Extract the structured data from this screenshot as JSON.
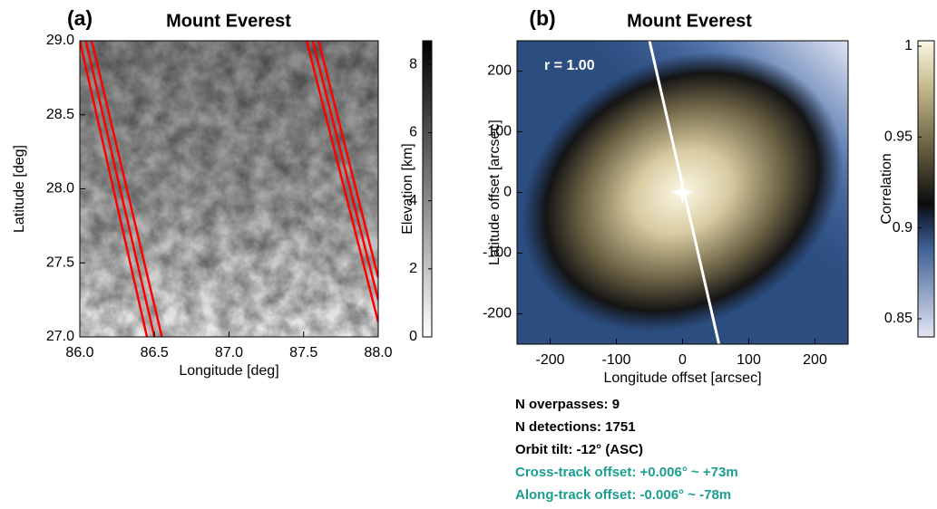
{
  "chart_data": [
    {
      "type": "image",
      "panel_label": "(a)",
      "title": "Mount Everest",
      "xlabel": "Longitude [deg]",
      "ylabel": "Latitude [deg]",
      "xlim": [
        86.0,
        88.0
      ],
      "ylim": [
        27.0,
        29.0
      ],
      "xticks": [
        {
          "value": 86,
          "label": "86.0"
        },
        {
          "value": 86.5,
          "label": "86.5"
        },
        {
          "value": 87,
          "label": "87.0"
        },
        {
          "value": 87.5,
          "label": "87.5"
        },
        {
          "value": 88,
          "label": "88.0"
        }
      ],
      "yticks": [
        {
          "value": 27,
          "label": "27.0"
        },
        27.5,
        {
          "value": 28,
          "label": "28.0"
        },
        28.5,
        {
          "value": 29,
          "label": "29.0"
        }
      ],
      "series": [
        {
          "color": "#ff0000",
          "x": [
            86.0,
            86.45
          ],
          "y": [
            29.0,
            27.0
          ]
        },
        {
          "color": "#ff0000",
          "x": [
            86.04,
            86.5
          ],
          "y": [
            29.0,
            27.0
          ]
        },
        {
          "color": "#ff0000",
          "x": [
            86.08,
            86.55
          ],
          "y": [
            29.0,
            27.0
          ]
        },
        {
          "color": "#ff0000",
          "x": [
            87.52,
            88.0
          ],
          "y": [
            29.0,
            27.1
          ]
        },
        {
          "color": "#ff0000",
          "x": [
            87.56,
            88.0
          ],
          "y": [
            29.0,
            27.25
          ]
        },
        {
          "color": "#ff0000",
          "x": [
            87.6,
            88.0
          ],
          "y": [
            29.0,
            27.4
          ]
        }
      ],
      "colorbar": {
        "label": "Elevation [km]",
        "lim": [
          0,
          8.7
        ],
        "ticks": [
          0,
          2,
          4,
          6,
          8
        ]
      }
    },
    {
      "type": "heatmap",
      "panel_label": "(b)",
      "title": "Mount Everest",
      "xlabel": "Longitude offset [arcsec]",
      "ylabel": "Latitude offset [arcsec]",
      "annotation": "r = 1.00",
      "xlim": [
        -250,
        250
      ],
      "ylim": [
        -250,
        250
      ],
      "xticks": [
        -200,
        -100,
        0,
        100,
        200
      ],
      "yticks": [
        -200,
        -100,
        0,
        100,
        200
      ],
      "series": [
        {
          "color": "#ffffff",
          "x": [
            -50,
            55
          ],
          "y": [
            250,
            -250
          ]
        }
      ],
      "marker": {
        "x": 0,
        "y": 0,
        "color": "#ffffff"
      },
      "colorbar": {
        "label": "Correlation",
        "lim": [
          0.84,
          1.003
        ],
        "ticks": [
          0.85,
          0.9,
          0.95,
          1
        ]
      },
      "notes": [
        {
          "text": "N overpasses: 9",
          "color": "#000000"
        },
        {
          "text": "N detections: 1751",
          "color": "#000000"
        },
        {
          "text": "Orbit tilt: -12° (ASC)",
          "color": "#000000"
        },
        {
          "text": "Cross-track offset: +0.006° ~ +73m",
          "color": "#1a9e8f"
        },
        {
          "text": "Along-track offset: -0.006° ~ -78m",
          "color": "#1a9e8f"
        }
      ]
    }
  ]
}
